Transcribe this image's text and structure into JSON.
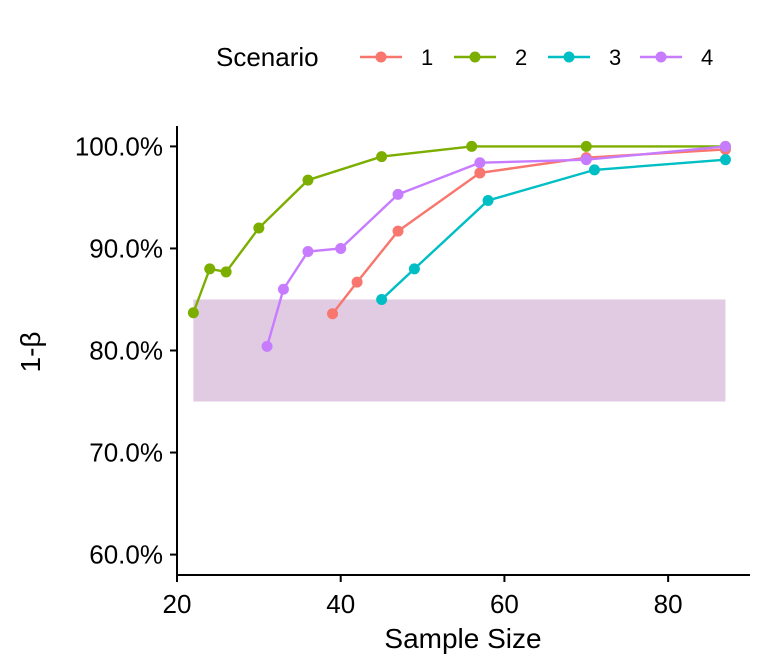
{
  "chart_data": {
    "type": "line",
    "xlabel": "Sample Size",
    "ylabel": "1-β",
    "xlim": [
      20,
      90
    ],
    "ylim": [
      0.58,
      1.02
    ],
    "x_ticks": [
      20,
      40,
      60,
      80
    ],
    "x_tick_labels": [
      "20",
      "40",
      "60",
      "80"
    ],
    "y_ticks": [
      0.6,
      0.7,
      0.8,
      0.9,
      1.0
    ],
    "y_tick_labels": [
      "60.0%",
      "70.0%",
      "80.0%",
      "90.0%",
      "100.0%"
    ],
    "grid": false,
    "legend": {
      "title": "Scenario",
      "position": "top"
    },
    "band": {
      "x": [
        22,
        87
      ],
      "y": [
        0.75,
        0.85
      ],
      "color": "#e1cbe2"
    },
    "series": [
      {
        "name": "1",
        "color": "#F8766D",
        "x": [
          39,
          42,
          47,
          57,
          70,
          87
        ],
        "y": [
          0.836,
          0.867,
          0.917,
          0.974,
          0.989,
          0.997
        ]
      },
      {
        "name": "2",
        "color": "#7CAE00",
        "x": [
          22,
          24,
          26,
          30,
          36,
          45,
          56,
          70,
          87
        ],
        "y": [
          0.837,
          0.88,
          0.877,
          0.92,
          0.967,
          0.99,
          1.0,
          1.0,
          1.0
        ]
      },
      {
        "name": "3",
        "color": "#00BFC4",
        "x": [
          45,
          49,
          58,
          71,
          87
        ],
        "y": [
          0.85,
          0.88,
          0.947,
          0.977,
          0.987
        ]
      },
      {
        "name": "4",
        "color": "#C77CFF",
        "x": [
          31,
          33,
          36,
          40,
          47,
          57,
          70,
          87
        ],
        "y": [
          0.804,
          0.86,
          0.897,
          0.9,
          0.953,
          0.984,
          0.987,
          1.0
        ]
      }
    ]
  }
}
